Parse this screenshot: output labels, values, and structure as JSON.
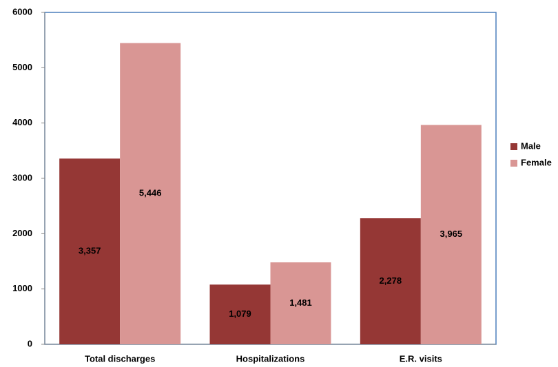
{
  "chart_data": {
    "type": "bar",
    "categories": [
      "Total discharges",
      "Hospitalizations",
      "E.R. visits"
    ],
    "series": [
      {
        "name": "Male",
        "color": "#953735",
        "values": [
          3357,
          1079,
          2278
        ],
        "value_labels": [
          "3,357",
          "1,079",
          "2,278"
        ]
      },
      {
        "name": "Female",
        "color": "#d99694",
        "values": [
          5446,
          1481,
          3965
        ],
        "value_labels": [
          "5,446",
          "1,481",
          "3,965"
        ]
      }
    ],
    "ylim": [
      0,
      6000
    ],
    "yticks": [
      0,
      1000,
      2000,
      3000,
      4000,
      5000,
      6000
    ],
    "legend": "right"
  }
}
